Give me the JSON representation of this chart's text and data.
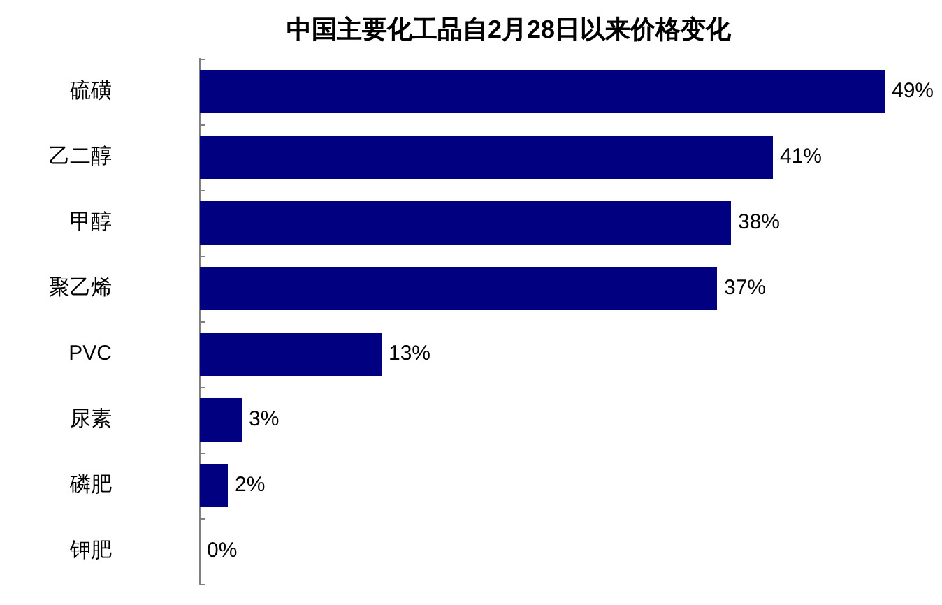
{
  "chart_data": {
    "type": "bar",
    "orientation": "horizontal",
    "title": "中国主要化工品自2月28日以来价格变化",
    "categories": [
      "硫磺",
      "乙二醇",
      "甲醇",
      "聚乙烯",
      "PVC",
      "尿素",
      "磷肥",
      "钾肥"
    ],
    "values": [
      49,
      41,
      38,
      37,
      13,
      3,
      2,
      0
    ],
    "color": "#000080",
    "value_labels": [
      "49%",
      "41%",
      "38%",
      "37%",
      "13%",
      "3%",
      "2%",
      "0%"
    ],
    "tick_labels": "y"
  }
}
